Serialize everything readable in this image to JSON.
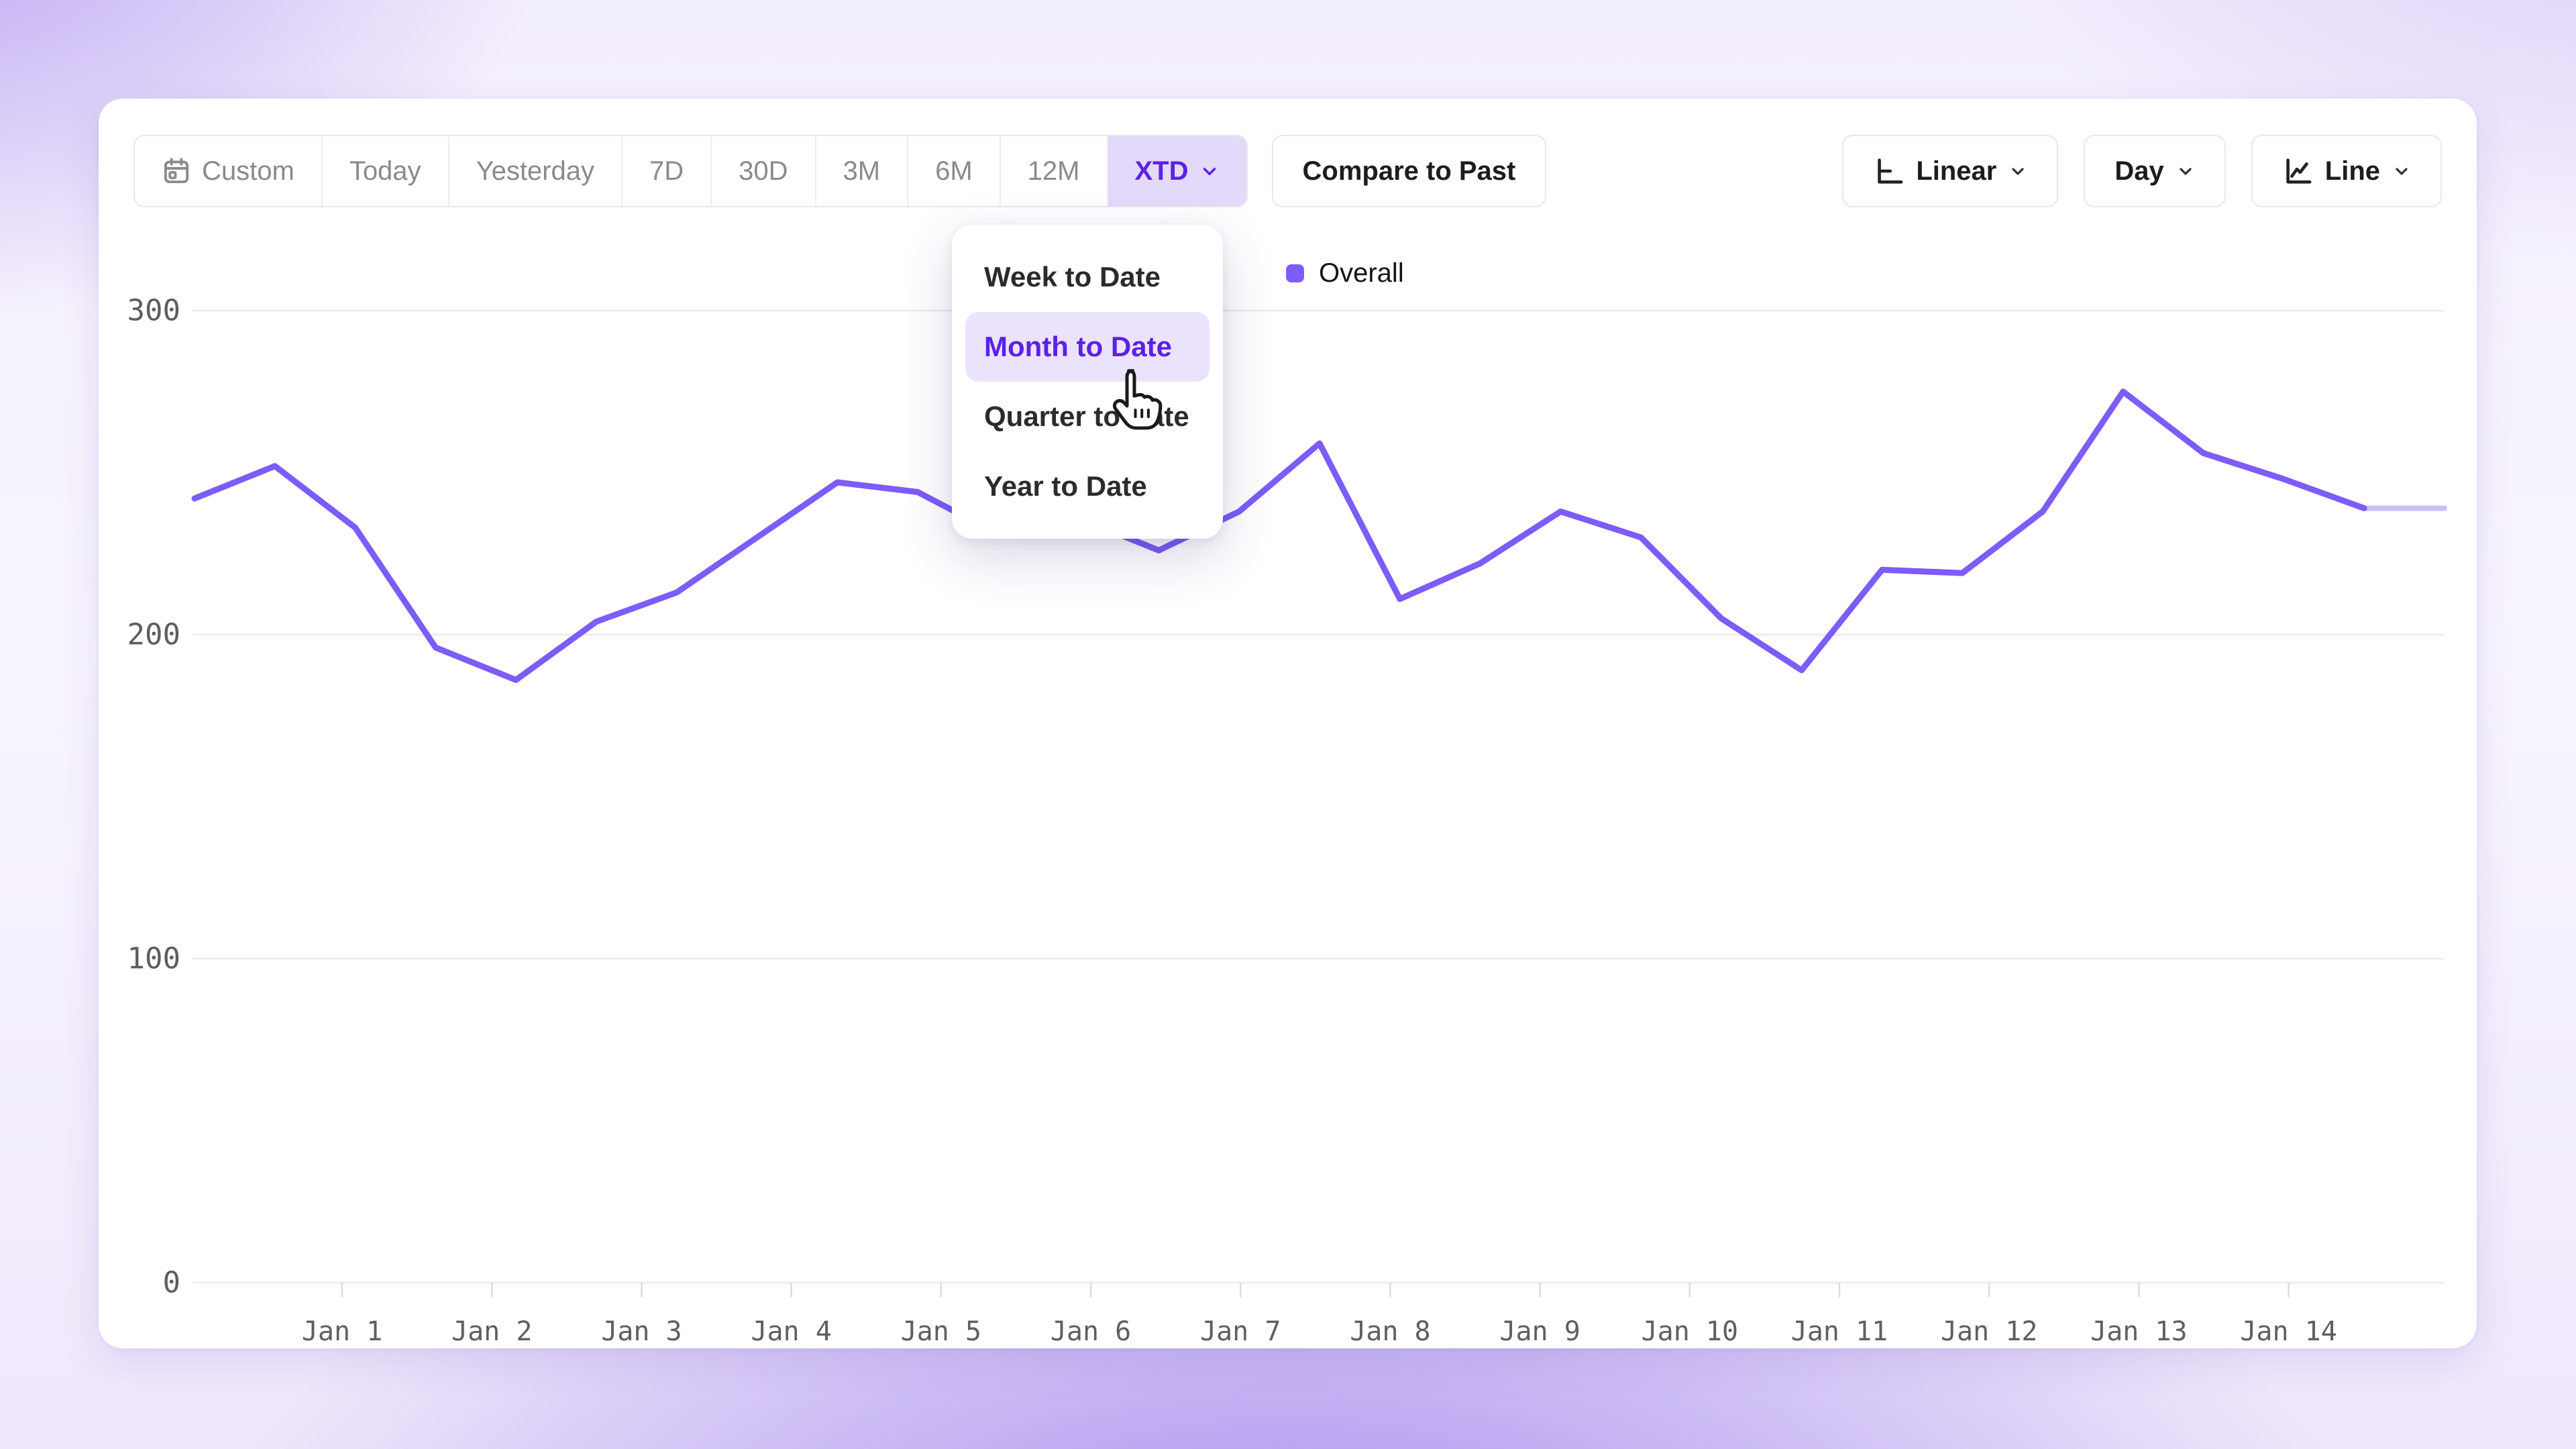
{
  "toolbar": {
    "ranges": [
      "Custom",
      "Today",
      "Yesterday",
      "7D",
      "30D",
      "3M",
      "6M",
      "12M",
      "XTD"
    ],
    "selected_range": "XTD",
    "compare_label": "Compare to Past",
    "scale_label": "Linear",
    "interval_label": "Day",
    "chart_type_label": "Line"
  },
  "dropdown": {
    "items": [
      "Week to Date",
      "Month to Date",
      "Quarter to Date",
      "Year to Date"
    ],
    "selected": "Month to Date"
  },
  "legend": {
    "label": "Overall",
    "color": "#7c5cfa"
  },
  "icons": {
    "calendar": "calendar-icon",
    "chevron_down": "chevron-down-icon",
    "linear_axis": "linear-scale-icon",
    "line_chart": "line-chart-icon",
    "cursor": "cursor-pointer-icon"
  },
  "colors": {
    "accent_text": "#5b21e6",
    "accent_bg": "#e3d9fb",
    "series_line": "#7c5cfa",
    "gridline": "#ebebeb",
    "axis_text": "#5d5d5d"
  },
  "chart_data": {
    "type": "line",
    "title": "",
    "legend_entries": [
      "Overall"
    ],
    "legend_position": "top",
    "grid": "horizontal",
    "ylim": [
      0,
      300
    ],
    "y_ticks": [
      0,
      100,
      200,
      300
    ],
    "x_tick_labels": [
      "Jan 1",
      "Jan 2",
      "Jan 3",
      "Jan 4",
      "Jan 5",
      "Jan 6",
      "Jan 7",
      "Jan 8",
      "Jan 9",
      "Jan 10",
      "Jan 11",
      "Jan 12",
      "Jan 13",
      "Jan 14"
    ],
    "points_per_day": 2,
    "series": [
      {
        "name": "Overall",
        "color": "#7c5cfa",
        "values": [
          242,
          252,
          233,
          196,
          186,
          204,
          213,
          230,
          247,
          244,
          231,
          236,
          226,
          238,
          259,
          211,
          222,
          238,
          230,
          205,
          189,
          220,
          219,
          238,
          275,
          256,
          248,
          239,
          239
        ],
        "final_segment_faded": true
      }
    ]
  }
}
